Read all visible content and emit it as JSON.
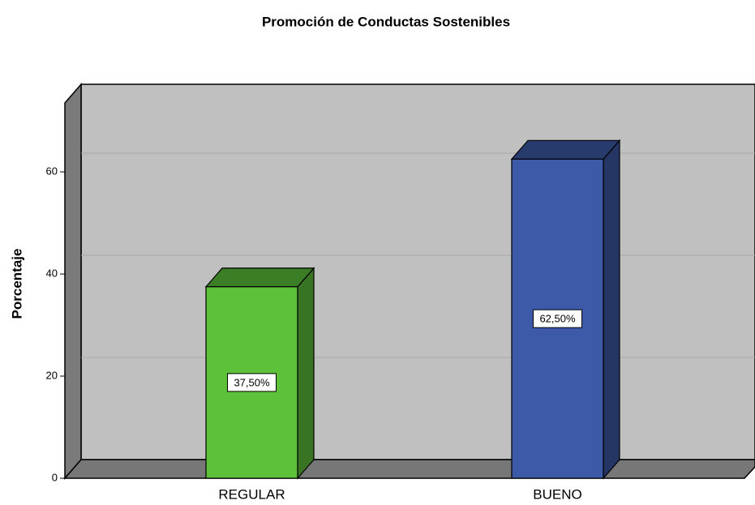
{
  "chart_data": {
    "type": "bar3d",
    "title": "Promoción de Conductas Sostenibles",
    "y_label": "Porcentaje",
    "categories": [
      "REGULAR",
      "BUENO"
    ],
    "values": [
      37.5,
      62.5
    ],
    "value_labels": [
      "37,50%",
      "62,50%"
    ],
    "colors": [
      "#5dc23a",
      "#3d5aa8"
    ],
    "ylim": [
      0,
      73.5
    ],
    "yticks": [
      0,
      20,
      40,
      60
    ],
    "grid": true
  }
}
